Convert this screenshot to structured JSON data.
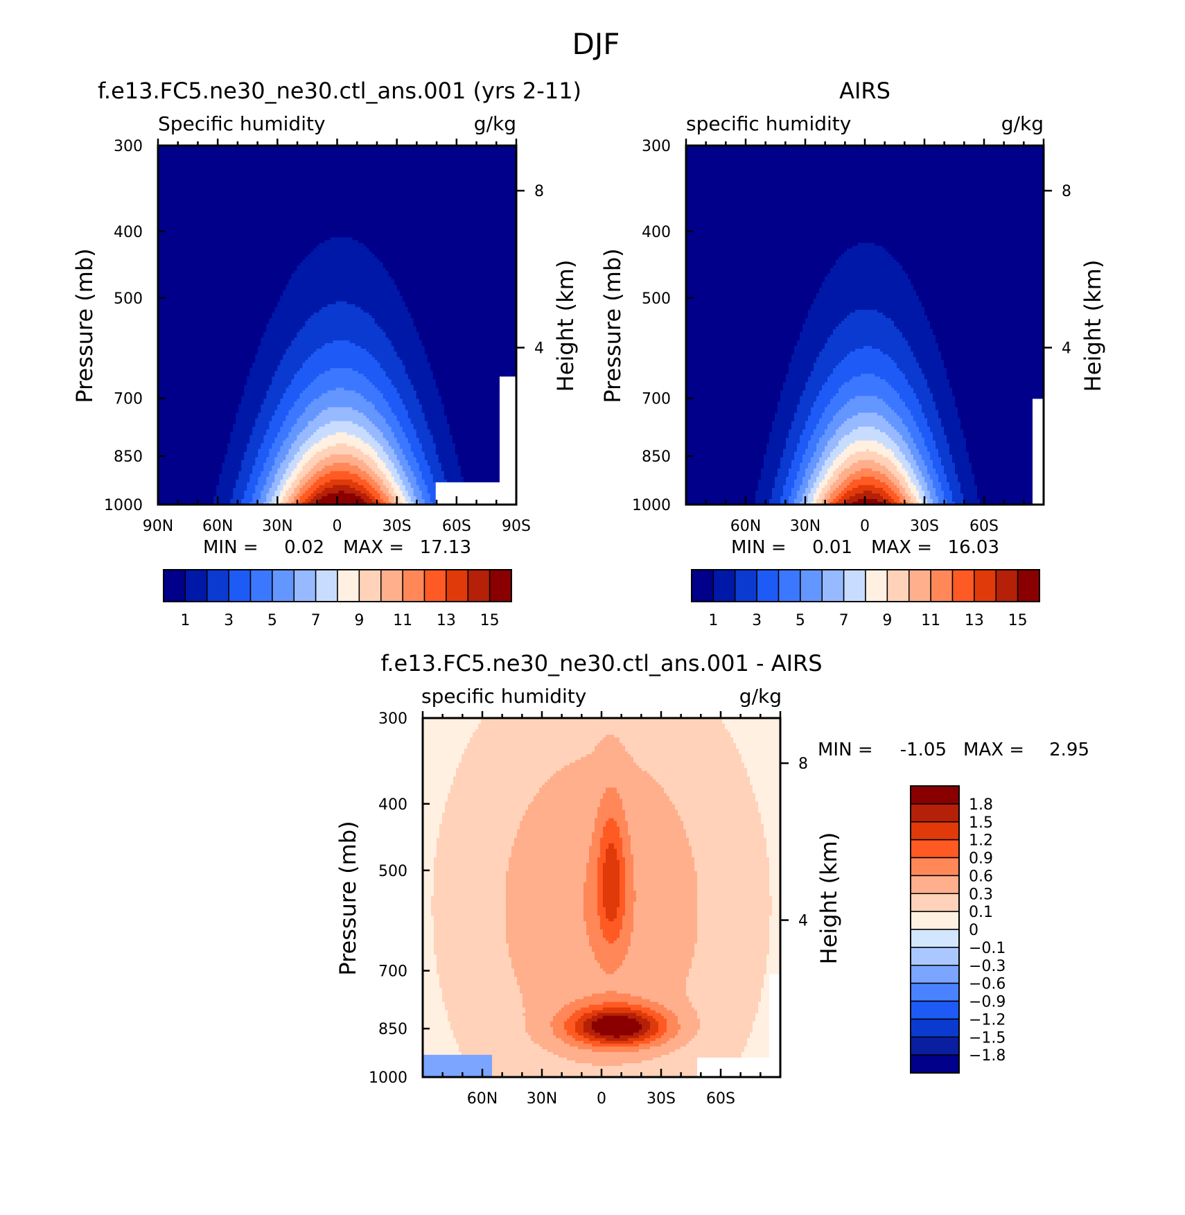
{
  "page": {
    "title": "DJF"
  },
  "colors": {
    "abs_levels": [
      "#00008a",
      "#0018a8",
      "#0a3ad0",
      "#1e5af6",
      "#3c78ff",
      "#6496ff",
      "#96b9ff",
      "#c8dcff",
      "#fff0e1",
      "#ffd2b9",
      "#ffaf8c",
      "#ff8758",
      "#ff5a23",
      "#e03a0a",
      "#b42008",
      "#8a0000"
    ],
    "diff_levels": [
      "#00008a",
      "#0a1ea0",
      "#0a3ad0",
      "#1e5af6",
      "#4b82ff",
      "#7ba5ff",
      "#aac8ff",
      "#d2e6ff",
      "#fff0e1",
      "#ffd2b9",
      "#ffaf8c",
      "#ff8758",
      "#ff5a23",
      "#e03a0a",
      "#b42008",
      "#8a0000"
    ]
  },
  "chart_data": [
    {
      "type": "heatmap",
      "title": "f.e13.FC5.ne30_ne30.ctl_ans.001 (yrs 2-11)",
      "left_label": "Specific humidity",
      "right_label": "g/kg",
      "ylabel": "Pressure (mb)",
      "ylabel_right": "Height (km)",
      "y_ticks": [
        "300",
        "400",
        "500",
        "700",
        "850",
        "1000"
      ],
      "y_right_ticks": [
        "8",
        "4"
      ],
      "x_ticks": [
        "90N",
        "60N",
        "30N",
        "0",
        "30S",
        "60S",
        "90S"
      ],
      "xlim": [
        90,
        -90
      ],
      "ylim": [
        1000,
        300
      ],
      "min_label": "MIN =",
      "min_value": "0.02",
      "max_label": "MAX =",
      "max_value": "17.13",
      "levels": [
        1,
        2,
        3,
        4,
        5,
        6,
        7,
        8,
        9,
        10,
        11,
        12,
        13,
        14,
        15
      ],
      "colorbar_labels": [
        "1",
        "3",
        "5",
        "7",
        "9",
        "11",
        "13",
        "15"
      ],
      "peak": {
        "lat": 0,
        "value": 17.13
      },
      "missing_region": {
        "lat_from": -50,
        "lat_to": -90,
        "p_from": 925,
        "p_to": 1000
      }
    },
    {
      "type": "heatmap",
      "title": "AIRS",
      "left_label": "specific humidity",
      "right_label": "g/kg",
      "ylabel": "Pressure (mb)",
      "ylabel_right": "Height (km)",
      "y_ticks": [
        "300",
        "400",
        "500",
        "700",
        "850",
        "1000"
      ],
      "y_right_ticks": [
        "8",
        "4"
      ],
      "x_ticks": [
        "60N",
        "30N",
        "0",
        "30S",
        "60S"
      ],
      "min_label": "MIN =",
      "min_value": "0.01",
      "max_label": "MAX =",
      "max_value": "16.03",
      "levels": [
        1,
        2,
        3,
        4,
        5,
        6,
        7,
        8,
        9,
        10,
        11,
        12,
        13,
        14,
        15
      ],
      "colorbar_labels": [
        "1",
        "3",
        "5",
        "7",
        "9",
        "11",
        "13",
        "15"
      ],
      "peak": {
        "lat": 0,
        "value": 16.03
      }
    },
    {
      "type": "heatmap",
      "title": "f.e13.FC5.ne30_ne30.ctl_ans.001 - AIRS",
      "left_label": "specific humidity",
      "right_label": "g/kg",
      "ylabel": "Pressure (mb)",
      "ylabel_right": "Height (km)",
      "y_ticks": [
        "300",
        "400",
        "500",
        "700",
        "850",
        "1000"
      ],
      "y_right_ticks": [
        "8",
        "4"
      ],
      "x_ticks": [
        "60N",
        "30N",
        "0",
        "30S",
        "60S"
      ],
      "min_label": "MIN =",
      "min_value": "-1.05",
      "max_label": "MAX =",
      "max_value": "2.95",
      "levels": [
        -1.8,
        -1.5,
        -1.2,
        -0.9,
        -0.6,
        -0.3,
        -0.1,
        0,
        0.1,
        0.3,
        0.6,
        0.9,
        1.2,
        1.5,
        1.8
      ],
      "colorbar_labels": [
        "1.8",
        "1.5",
        "1.2",
        "0.9",
        "0.6",
        "0.3",
        "0.1",
        "0",
        "-0.1",
        "-0.3",
        "-0.6",
        "-0.9",
        "-1.2",
        "-1.5",
        "-1.8"
      ],
      "peak": {
        "lat": -10,
        "p": 850,
        "value": 2.95
      }
    }
  ]
}
